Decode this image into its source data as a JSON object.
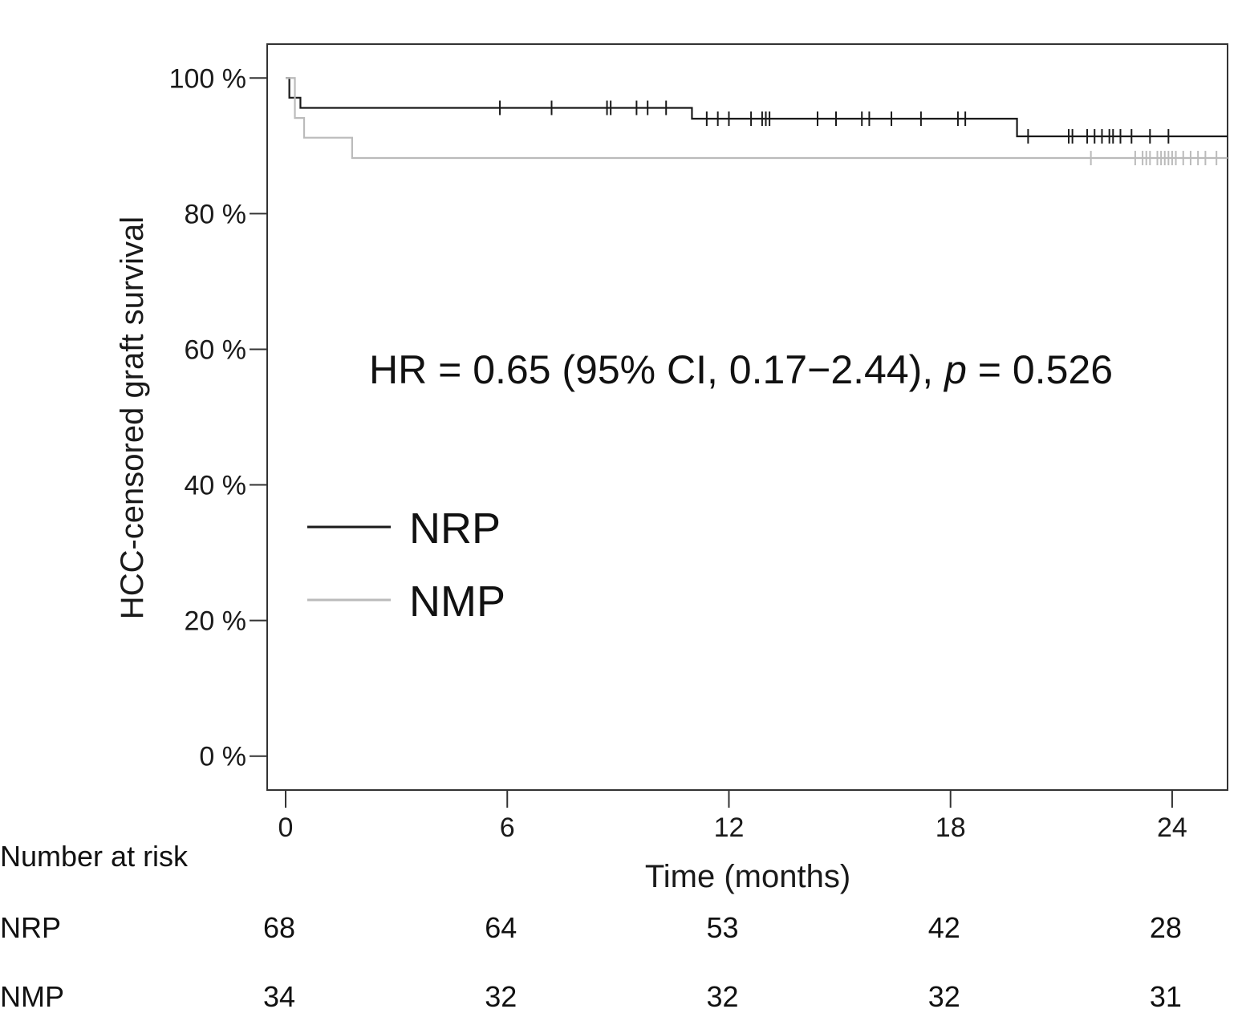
{
  "chart_data": {
    "type": "line",
    "subtype": "kaplan-meier",
    "title": "",
    "xlabel": "Time (months)",
    "ylabel": "HCC-censored graft survival",
    "xlim": [
      -0.5,
      25.5
    ],
    "ylim": [
      -5,
      105
    ],
    "xticks": [
      0,
      6,
      12,
      18,
      24
    ],
    "xtick_labels": [
      "0",
      "6",
      "12",
      "18",
      "24"
    ],
    "yticks": [
      0,
      20,
      40,
      60,
      80,
      100
    ],
    "ytick_labels": [
      "0 %",
      "20 %",
      "40 %",
      "60 %",
      "80 %",
      "100 %"
    ],
    "grid": false,
    "legend_position": "middle-left",
    "annotation": {
      "parts": [
        {
          "text": "HR = 0.65 (95% CI, 0.17−2.44), ",
          "italic": false
        },
        {
          "text": "p",
          "italic": true
        },
        {
          "text": " = 0.526",
          "italic": false
        }
      ]
    },
    "series": [
      {
        "name": "NRP",
        "color": "#1a1a1a",
        "steps": [
          [
            0,
            100
          ],
          [
            0.1,
            97.1
          ],
          [
            0.4,
            95.6
          ],
          [
            11.0,
            94.0
          ],
          [
            19.8,
            91.4
          ],
          [
            25.5,
            91.4
          ]
        ],
        "censored": [
          5.8,
          7.2,
          8.7,
          8.8,
          9.5,
          9.8,
          10.3,
          11.4,
          11.7,
          12.0,
          12.6,
          12.9,
          13.0,
          13.1,
          14.4,
          14.9,
          15.6,
          15.8,
          16.4,
          17.2,
          18.2,
          18.4,
          20.1,
          21.2,
          21.3,
          21.7,
          21.9,
          22.1,
          22.3,
          22.4,
          22.6,
          22.9,
          23.4,
          23.9
        ]
      },
      {
        "name": "NMP",
        "color": "#bbbbbb",
        "steps": [
          [
            0,
            100
          ],
          [
            0.25,
            94.1
          ],
          [
            0.5,
            91.2
          ],
          [
            1.8,
            88.2
          ],
          [
            25.5,
            88.2
          ]
        ],
        "censored": [
          21.8,
          23.0,
          23.2,
          23.3,
          23.4,
          23.6,
          23.7,
          23.8,
          23.9,
          24.0,
          24.1,
          24.3,
          24.5,
          24.7,
          24.9,
          25.2
        ]
      }
    ],
    "number_at_risk": {
      "label": "Number at risk",
      "times": [
        0,
        6,
        12,
        18,
        24
      ],
      "rows": [
        {
          "name": "NRP",
          "values": [
            "68",
            "64",
            "53",
            "42",
            "28"
          ]
        },
        {
          "name": "NMP",
          "values": [
            "34",
            "32",
            "32",
            "32",
            "31"
          ]
        }
      ]
    }
  }
}
